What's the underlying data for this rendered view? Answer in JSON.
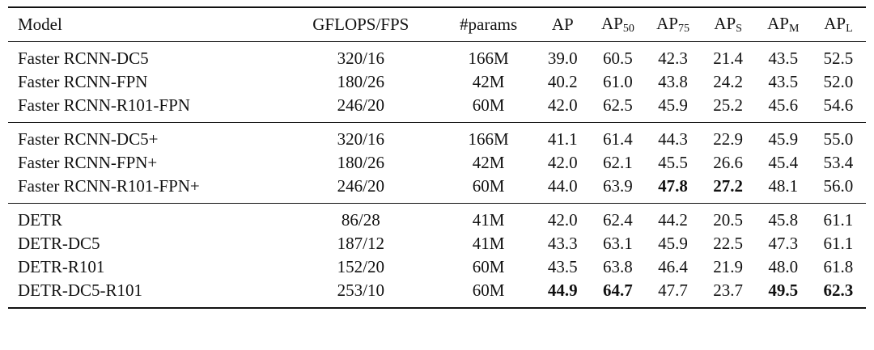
{
  "table": {
    "header": [
      {
        "text": "Model"
      },
      {
        "text": "GFLOPS/FPS"
      },
      {
        "text": "#params"
      },
      {
        "text": "AP"
      },
      {
        "text": "AP",
        "sub": "50"
      },
      {
        "text": "AP",
        "sub": "75"
      },
      {
        "text": "AP",
        "sub": "S"
      },
      {
        "text": "AP",
        "sub": "M"
      },
      {
        "text": "AP",
        "sub": "L"
      }
    ],
    "groups": [
      [
        [
          "Faster RCNN-DC5",
          "320/16",
          "166M",
          "39.0",
          "60.5",
          "42.3",
          "21.4",
          "43.5",
          "52.5"
        ],
        [
          "Faster RCNN-FPN",
          "180/26",
          "42M",
          "40.2",
          "61.0",
          "43.8",
          "24.2",
          "43.5",
          "52.0"
        ],
        [
          "Faster RCNN-R101-FPN",
          "246/20",
          "60M",
          "42.0",
          "62.5",
          "45.9",
          "25.2",
          "45.6",
          "54.6"
        ]
      ],
      [
        [
          "Faster RCNN-DC5+",
          "320/16",
          "166M",
          "41.1",
          "61.4",
          "44.3",
          "22.9",
          "45.9",
          "55.0"
        ],
        [
          "Faster RCNN-FPN+",
          "180/26",
          "42M",
          "42.0",
          "62.1",
          "45.5",
          "26.6",
          "45.4",
          "53.4"
        ],
        [
          "Faster RCNN-R101-FPN+",
          "246/20",
          "60M",
          "44.0",
          "63.9",
          {
            "value": "47.8",
            "bold": true
          },
          {
            "value": "27.2",
            "bold": true
          },
          "48.1",
          "56.0"
        ]
      ],
      [
        [
          "DETR",
          "86/28",
          "41M",
          "42.0",
          "62.4",
          "44.2",
          "20.5",
          "45.8",
          "61.1"
        ],
        [
          "DETR-DC5",
          "187/12",
          "41M",
          "43.3",
          "63.1",
          "45.9",
          "22.5",
          "47.3",
          "61.1"
        ],
        [
          "DETR-R101",
          "152/20",
          "60M",
          "43.5",
          "63.8",
          "46.4",
          "21.9",
          "48.0",
          "61.8"
        ],
        [
          "DETR-DC5-R101",
          "253/10",
          "60M",
          {
            "value": "44.9",
            "bold": true
          },
          {
            "value": "64.7",
            "bold": true
          },
          "47.7",
          "23.7",
          {
            "value": "49.5",
            "bold": true
          },
          {
            "value": "62.3",
            "bold": true
          }
        ]
      ]
    ]
  }
}
